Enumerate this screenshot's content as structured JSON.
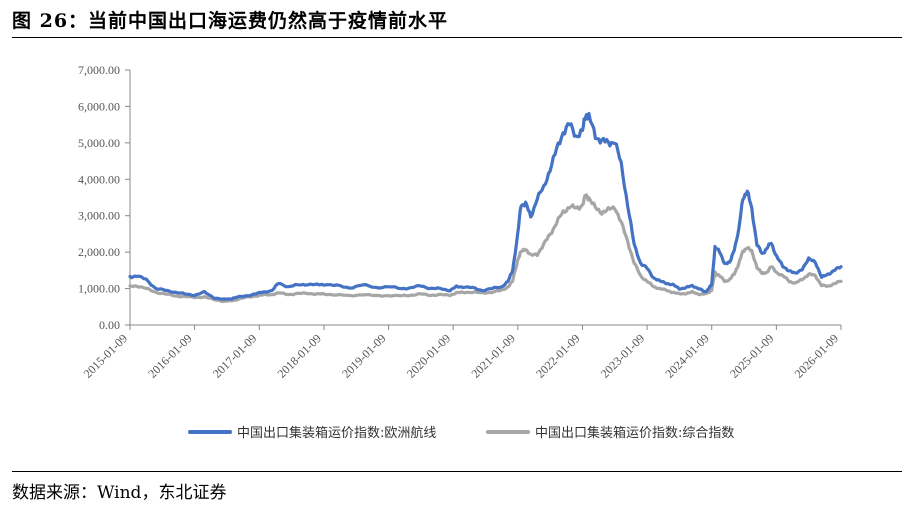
{
  "figure": {
    "title": "图 26：当前中国出口海运费仍然高于疫情前水平",
    "source": "数据来源：Wind，东北证券"
  },
  "chart_data": {
    "type": "line",
    "title": "",
    "xlabel": "",
    "ylabel": "",
    "ylim": [
      0,
      7000
    ],
    "y_ticks": [
      "0.00",
      "1,000.00",
      "2,000.00",
      "3,000.00",
      "4,000.00",
      "5,000.00",
      "6,000.00",
      "7,000.00"
    ],
    "x_range": [
      2015.0,
      2026.0
    ],
    "x_ticks": [
      "2015-01-09",
      "2016-01-09",
      "2017-01-09",
      "2018-01-09",
      "2019-01-09",
      "2020-01-09",
      "2021-01-09",
      "2022-01-09",
      "2023-01-09",
      "2024-01-09",
      "2025-01-09",
      "2026-01-09"
    ],
    "grid": false,
    "legend_position": "bottom",
    "series": [
      {
        "name": "中国出口集装箱运价指数:欧洲航线",
        "color": "#4472C4",
        "x": [
          2015.0,
          2015.1,
          2015.25,
          2015.4,
          2015.55,
          2015.7,
          2015.85,
          2016.0,
          2016.15,
          2016.3,
          2016.45,
          2016.55,
          2016.65,
          2016.8,
          2016.95,
          2017.05,
          2017.2,
          2017.3,
          2017.45,
          2017.6,
          2017.75,
          2017.9,
          2018.0,
          2018.2,
          2018.4,
          2018.6,
          2018.8,
          2019.0,
          2019.2,
          2019.35,
          2019.5,
          2019.65,
          2019.8,
          2019.95,
          2020.05,
          2020.15,
          2020.3,
          2020.45,
          2020.6,
          2020.75,
          2020.85,
          2020.92,
          2021.0,
          2021.05,
          2021.12,
          2021.2,
          2021.3,
          2021.4,
          2021.5,
          2021.6,
          2021.7,
          2021.8,
          2021.9,
          2022.0,
          2022.05,
          2022.1,
          2022.2,
          2022.3,
          2022.4,
          2022.5,
          2022.6,
          2022.7,
          2022.8,
          2022.9,
          2023.0,
          2023.1,
          2023.2,
          2023.3,
          2023.4,
          2023.5,
          2023.6,
          2023.7,
          2023.8,
          2023.9,
          2023.95,
          2024.0,
          2024.05,
          2024.12,
          2024.2,
          2024.28,
          2024.35,
          2024.42,
          2024.48,
          2024.55,
          2024.62,
          2024.7,
          2024.78,
          2024.85,
          2024.92,
          2025.0,
          2025.1,
          2025.2,
          2025.3,
          2025.4,
          2025.5,
          2025.6,
          2025.7,
          2025.8,
          2025.9,
          2026.0
        ],
        "values": [
          1320,
          1350,
          1250,
          1000,
          950,
          900,
          850,
          820,
          900,
          750,
          700,
          720,
          760,
          800,
          860,
          900,
          950,
          1150,
          1050,
          1100,
          1120,
          1100,
          1120,
          1080,
          1020,
          1100,
          1030,
          1050,
          1000,
          1020,
          1080,
          1000,
          1000,
          950,
          1050,
          1050,
          1020,
          950,
          1000,
          1050,
          1200,
          1500,
          2500,
          3300,
          3350,
          2950,
          3500,
          3750,
          4300,
          4800,
          5300,
          5500,
          5200,
          5300,
          5800,
          5700,
          5200,
          5050,
          5000,
          5050,
          4400,
          3300,
          2200,
          1700,
          1550,
          1300,
          1200,
          1150,
          1100,
          1000,
          1020,
          1080,
          1000,
          900,
          1000,
          1100,
          2150,
          2000,
          1700,
          1700,
          2100,
          2600,
          3500,
          3650,
          3200,
          2200,
          1950,
          2100,
          2250,
          1900,
          1600,
          1500,
          1400,
          1550,
          1800,
          1750,
          1300,
          1400,
          1500,
          1600
        ]
      },
      {
        "name": "中国出口集装箱运价指数:综合指数",
        "color": "#A6A6A6",
        "x": [
          2015.0,
          2015.1,
          2015.25,
          2015.4,
          2015.55,
          2015.7,
          2015.85,
          2016.0,
          2016.15,
          2016.3,
          2016.45,
          2016.55,
          2016.65,
          2016.8,
          2016.95,
          2017.05,
          2017.2,
          2017.3,
          2017.45,
          2017.6,
          2017.75,
          2017.9,
          2018.0,
          2018.2,
          2018.4,
          2018.6,
          2018.8,
          2019.0,
          2019.2,
          2019.35,
          2019.5,
          2019.65,
          2019.8,
          2019.95,
          2020.05,
          2020.15,
          2020.3,
          2020.45,
          2020.6,
          2020.75,
          2020.85,
          2020.92,
          2021.0,
          2021.05,
          2021.12,
          2021.2,
          2021.3,
          2021.4,
          2021.5,
          2021.6,
          2021.7,
          2021.8,
          2021.9,
          2022.0,
          2022.05,
          2022.1,
          2022.2,
          2022.3,
          2022.4,
          2022.5,
          2022.6,
          2022.7,
          2022.8,
          2022.9,
          2023.0,
          2023.1,
          2023.2,
          2023.3,
          2023.4,
          2023.5,
          2023.6,
          2023.7,
          2023.8,
          2023.9,
          2023.95,
          2024.0,
          2024.05,
          2024.12,
          2024.2,
          2024.28,
          2024.35,
          2024.42,
          2024.48,
          2024.55,
          2024.62,
          2024.7,
          2024.78,
          2024.85,
          2024.92,
          2025.0,
          2025.1,
          2025.2,
          2025.3,
          2025.4,
          2025.5,
          2025.6,
          2025.7,
          2025.8,
          2025.9,
          2026.0
        ],
        "values": [
          1050,
          1080,
          1000,
          900,
          850,
          800,
          780,
          760,
          770,
          700,
          650,
          660,
          700,
          760,
          800,
          820,
          840,
          880,
          840,
          860,
          870,
          850,
          850,
          830,
          800,
          840,
          800,
          810,
          800,
          820,
          850,
          820,
          830,
          820,
          880,
          900,
          900,
          880,
          900,
          950,
          1050,
          1200,
          1800,
          2000,
          2100,
          1900,
          1950,
          2200,
          2500,
          2800,
          3100,
          3250,
          3200,
          3300,
          3550,
          3500,
          3200,
          3100,
          3150,
          3250,
          2800,
          2300,
          1700,
          1350,
          1200,
          1050,
          1000,
          950,
          900,
          850,
          870,
          900,
          850,
          850,
          900,
          950,
          1450,
          1350,
          1200,
          1250,
          1400,
          1700,
          2000,
          2150,
          2000,
          1600,
          1400,
          1450,
          1600,
          1450,
          1350,
          1200,
          1150,
          1250,
          1400,
          1350,
          1100,
          1050,
          1150,
          1200
        ]
      }
    ]
  }
}
